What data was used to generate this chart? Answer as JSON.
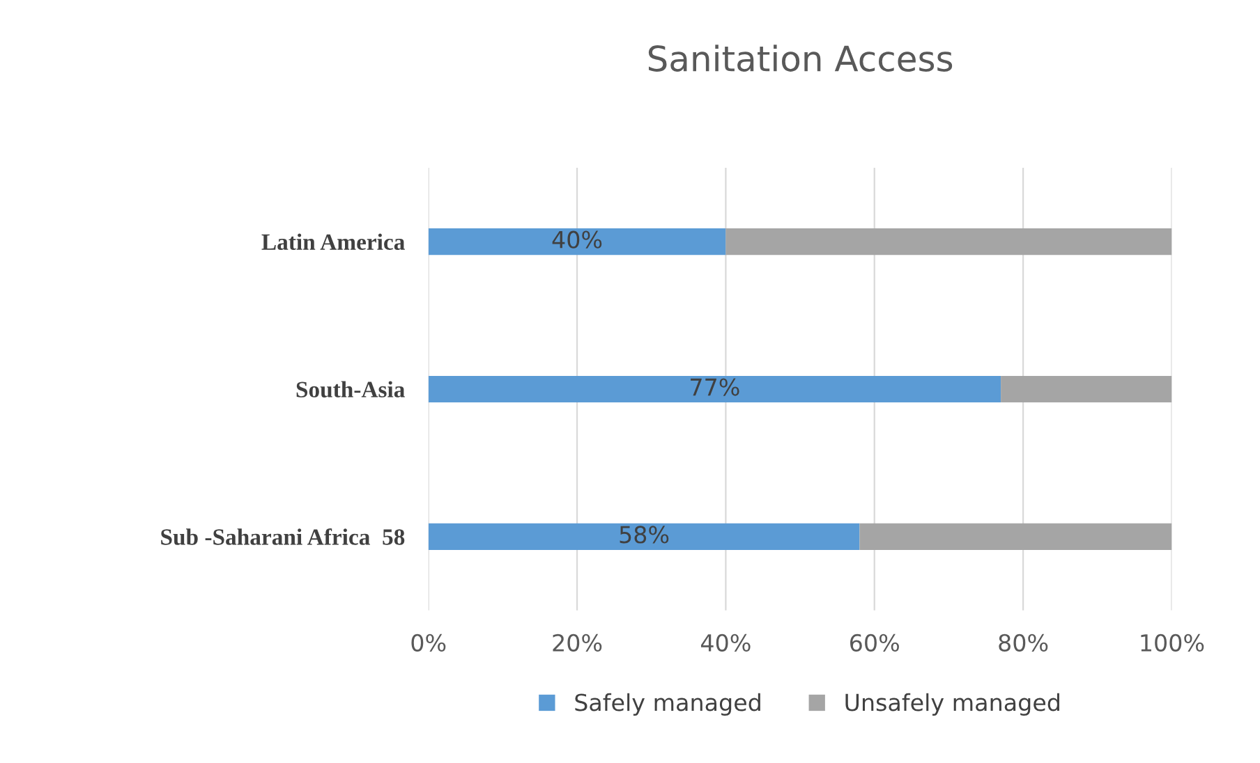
{
  "chart_data": {
    "type": "bar",
    "orientation": "horizontal",
    "stacked": true,
    "title": "Sanitation Access",
    "categories": [
      "Latin America",
      "South-Asia",
      "Sub -Saharani Africa  58"
    ],
    "series": [
      {
        "name": "Safely managed",
        "color": "#5b9bd5",
        "values": [
          40,
          77,
          58
        ],
        "value_labels": [
          "40%",
          "77%",
          "58%"
        ]
      },
      {
        "name": "Unsafely managed",
        "color": "#a5a5a5",
        "values": [
          60,
          23,
          42
        ]
      }
    ],
    "xlim": [
      0,
      100
    ],
    "xticks": [
      {
        "value": 0,
        "label": "0%"
      },
      {
        "value": 20,
        "label": "20%"
      },
      {
        "value": 40,
        "label": "40%"
      },
      {
        "value": 60,
        "label": "60%"
      },
      {
        "value": 80,
        "label": "80%"
      },
      {
        "value": 100,
        "label": "100%"
      }
    ],
    "grid": "x",
    "legend": "bottom"
  }
}
